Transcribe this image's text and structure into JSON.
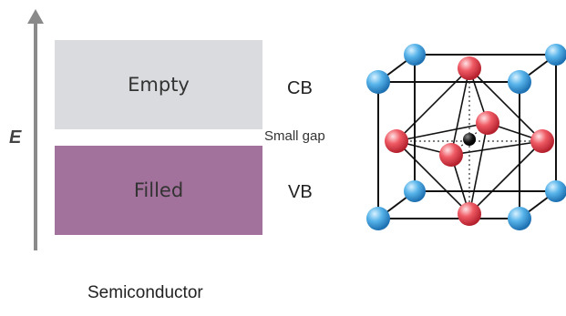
{
  "band_diagram": {
    "axis_label": "E",
    "empty_band_label": "Empty",
    "filled_band_label": "Filled",
    "cb_label": "CB",
    "vb_label": "VB",
    "gap_label": "Small gap",
    "caption": "Semiconductor"
  },
  "colors": {
    "empty_band": "#d9dbde",
    "filled_band": "#a2729c",
    "blue_atom": "#3a9bd8",
    "red_atom": "#e0434f",
    "center_atom": "#111111"
  },
  "icons": {
    "crystal": "perovskite-unit-cell-icon"
  }
}
